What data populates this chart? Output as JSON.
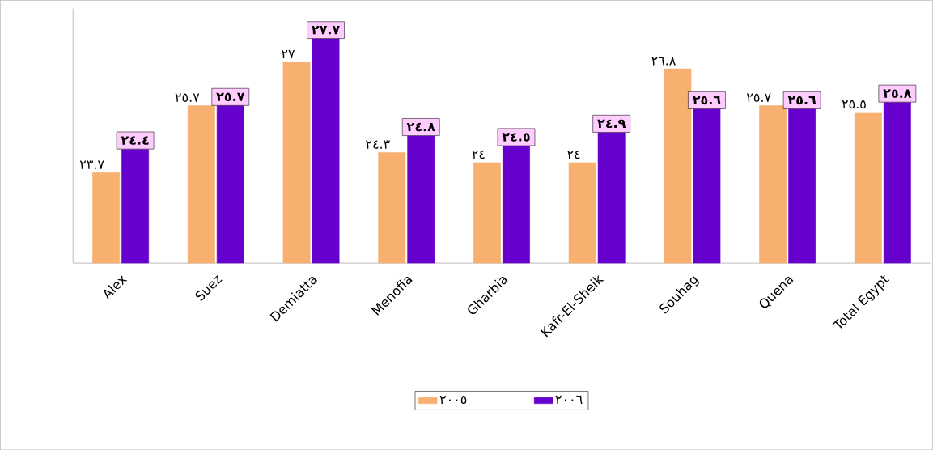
{
  "chart_data": {
    "type": "bar",
    "categories": [
      "Alex",
      "Suez",
      "Demiatta",
      "Menofia",
      "Gharbia",
      "Kafr-El-Sheik",
      "Souhag",
      "Quena",
      "Total Egypt"
    ],
    "ylim": [
      21,
      28.6
    ],
    "tick_labels": "x",
    "legend": "bottom",
    "series": [
      {
        "name": "٢٠٠٥",
        "color": "#f8b070",
        "values": [
          23.7,
          25.7,
          27,
          24.3,
          24,
          24,
          26.8,
          25.7,
          25.5
        ],
        "value_labels": [
          "٢٣.٧",
          "٢٥.٧",
          "٢٧",
          "٢٤.٣",
          "٢٤",
          "٢٤",
          "٢٦.٨",
          "٢٥.٧",
          "٢٥.٥"
        ]
      },
      {
        "name": "٢٠٠٦",
        "color": "#6600cc",
        "values": [
          24.4,
          25.7,
          27.7,
          24.8,
          24.5,
          24.9,
          25.6,
          25.6,
          25.8
        ],
        "value_labels": [
          "٢٤.٤",
          "٢٥.٧",
          "٢٧.٧",
          "٢٤.٨",
          "٢٤.٥",
          "٢٤.٩",
          "٢٥.٦",
          "٢٥.٦",
          "٢٥.٨"
        ]
      }
    ]
  }
}
